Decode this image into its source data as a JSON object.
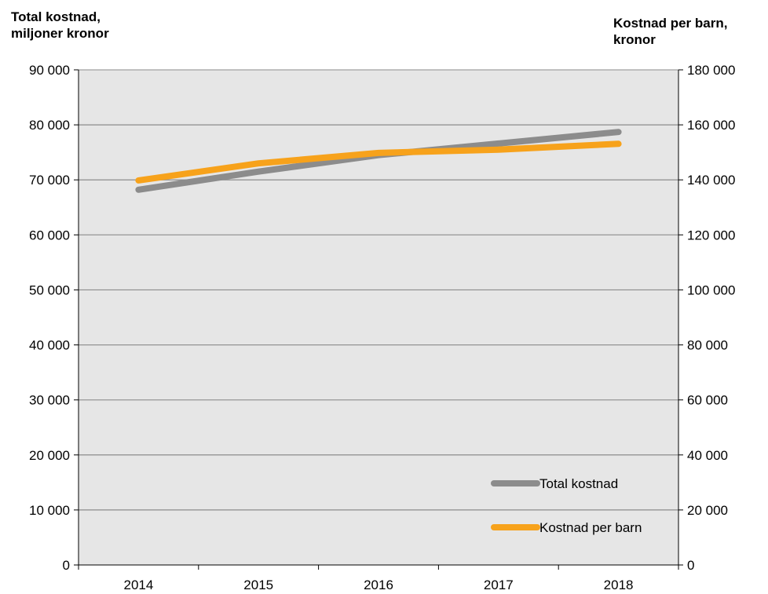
{
  "chart_data": {
    "type": "line",
    "categories": [
      "2014",
      "2015",
      "2016",
      "2017",
      "2018"
    ],
    "left_axis": {
      "title": "Total kostnad,\nmiljoner kronor",
      "ylim": [
        0,
        90000
      ],
      "ticks": [
        0,
        10000,
        20000,
        30000,
        40000,
        50000,
        60000,
        70000,
        80000,
        90000
      ],
      "tick_labels": [
        "0",
        "10 000",
        "20 000",
        "30 000",
        "40 000",
        "50 000",
        "60 000",
        "70 000",
        "80 000",
        "90 000"
      ]
    },
    "right_axis": {
      "title": "Kostnad per barn,\nkronor",
      "ylim": [
        0,
        180000
      ],
      "ticks": [
        0,
        20000,
        40000,
        60000,
        80000,
        100000,
        120000,
        140000,
        160000,
        180000
      ],
      "tick_labels": [
        "0",
        "20 000",
        "40 000",
        "60 000",
        "80 000",
        "100 000",
        "120 000",
        "140 000",
        "160 000",
        "180 000"
      ]
    },
    "series": [
      {
        "name": "Total kostnad",
        "axis": "left",
        "color": "#8c8c8c",
        "values": [
          68200,
          71500,
          74500,
          76600,
          78700
        ]
      },
      {
        "name": "Kostnad per barn",
        "axis": "right",
        "color": "#f7a21b",
        "values": [
          139800,
          146000,
          149800,
          151000,
          153100
        ]
      }
    ],
    "grid": true,
    "plot_background": "#e6e6e6",
    "legend": {
      "position": "bottom-right"
    }
  }
}
